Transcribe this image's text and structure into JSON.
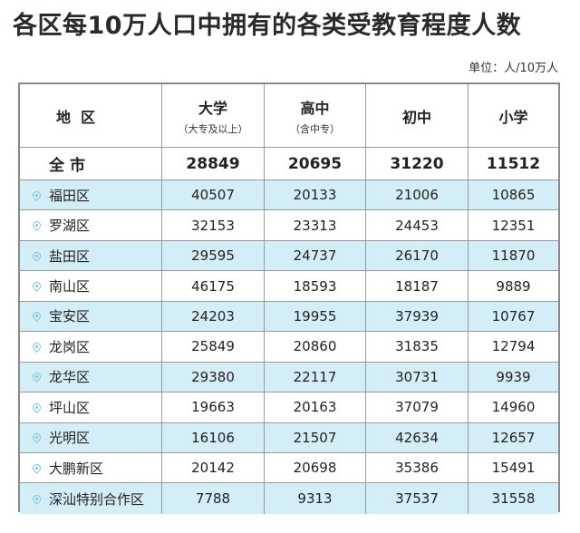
{
  "title": "各区每10万人口中拥有的各类受教育程度人数",
  "unit": "单位：人/10万人",
  "headers": {
    "district": "地  区",
    "college": "大学",
    "college_sub": "（大专及以上）",
    "high": "高中",
    "high_sub": "（含中专）",
    "middle": "初中",
    "primary": "小学"
  },
  "total": {
    "label": "全市",
    "college": "28849",
    "high": "20695",
    "middle": "31220",
    "primary": "11512"
  },
  "rows": [
    {
      "name": "福田区",
      "college": "40507",
      "high": "20133",
      "middle": "21006",
      "primary": "10865"
    },
    {
      "name": "罗湖区",
      "college": "32153",
      "high": "23313",
      "middle": "24453",
      "primary": "12351"
    },
    {
      "name": "盐田区",
      "college": "29595",
      "high": "24737",
      "middle": "26170",
      "primary": "11870"
    },
    {
      "name": "南山区",
      "college": "46175",
      "high": "18593",
      "middle": "18187",
      "primary": "9889"
    },
    {
      "name": "宝安区",
      "college": "24203",
      "high": "19955",
      "middle": "37939",
      "primary": "10767"
    },
    {
      "name": "龙岗区",
      "college": "25849",
      "high": "20860",
      "middle": "31835",
      "primary": "12794"
    },
    {
      "name": "龙华区",
      "college": "29380",
      "high": "22117",
      "middle": "30731",
      "primary": "9939"
    },
    {
      "name": "坪山区",
      "college": "19663",
      "high": "20163",
      "middle": "37079",
      "primary": "14960"
    },
    {
      "name": "光明区",
      "college": "16106",
      "high": "21507",
      "middle": "42634",
      "primary": "12657"
    },
    {
      "name": "大鹏新区",
      "college": "20142",
      "high": "20698",
      "middle": "35386",
      "primary": "15491"
    },
    {
      "name": "深汕特别合作区",
      "college": "7788",
      "high": "9313",
      "middle": "37537",
      "primary": "31558"
    }
  ],
  "colors": {
    "stripe": "#d4eef7",
    "pin": "#7cc4dc",
    "border": "#8a8a8a"
  },
  "icons": {
    "row_marker": "location-pin-icon"
  }
}
